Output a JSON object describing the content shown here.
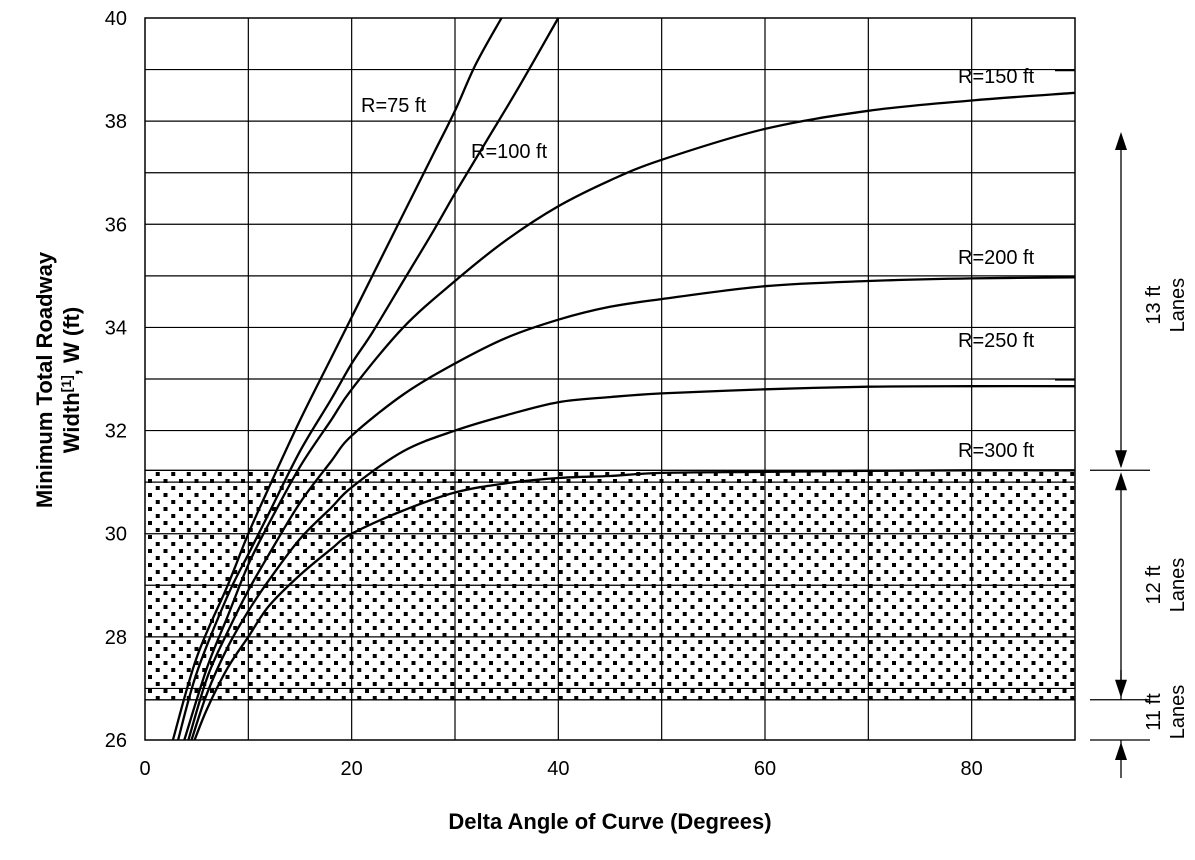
{
  "chart_data": {
    "type": "line",
    "title": "",
    "xlabel": "Delta Angle of Curve (Degrees)",
    "ylabel_line1": "Minimum Total Roadway",
    "ylabel_line2_prefix": "Width",
    "ylabel_superscript": "[1]",
    "ylabel_line2_suffix": ", W (ft)",
    "xlim": [
      0,
      90
    ],
    "ylim": [
      26,
      40
    ],
    "x_ticks": [
      0,
      20,
      40,
      60,
      80
    ],
    "y_ticks": [
      26,
      28,
      30,
      32,
      34,
      36,
      38,
      40
    ],
    "grid": true,
    "series": [
      {
        "name": "R=75 ft",
        "x": [
          2.7,
          5,
          8,
          10,
          12,
          15,
          18,
          20,
          22,
          25,
          28,
          30,
          32,
          34.5
        ],
        "y": [
          26.0,
          27.6,
          29.0,
          30.0,
          30.9,
          32.2,
          33.4,
          34.2,
          35.0,
          36.2,
          37.4,
          38.2,
          39.1,
          40.0
        ]
      },
      {
        "name": "R=100 ft",
        "x": [
          3.2,
          5,
          8,
          10,
          12,
          15,
          18,
          20,
          22,
          25,
          28,
          30,
          33,
          36,
          40
        ],
        "y": [
          26.0,
          27.3,
          28.8,
          29.6,
          30.4,
          31.6,
          32.6,
          33.3,
          33.9,
          34.9,
          35.9,
          36.6,
          37.6,
          38.6,
          40.0
        ]
      },
      {
        "name": "R=150 ft",
        "x": [
          3.8,
          6,
          8,
          10,
          12,
          15,
          18,
          20,
          25,
          30,
          35,
          40,
          45,
          50,
          60,
          70,
          80,
          90
        ],
        "y": [
          26.0,
          27.4,
          28.4,
          29.4,
          30.2,
          31.3,
          32.2,
          32.8,
          34.0,
          34.9,
          35.7,
          36.35,
          36.85,
          37.25,
          37.85,
          38.2,
          38.4,
          38.55
        ]
      },
      {
        "name": "R=200 ft",
        "x": [
          4.2,
          6,
          8,
          10,
          12,
          15,
          18,
          20,
          25,
          30,
          35,
          40,
          45,
          50,
          60,
          70,
          80,
          90
        ],
        "y": [
          26.0,
          27.2,
          28.1,
          28.9,
          29.6,
          30.6,
          31.4,
          31.9,
          32.7,
          33.3,
          33.8,
          34.15,
          34.4,
          34.55,
          34.8,
          34.9,
          34.95,
          34.97
        ]
      },
      {
        "name": "R=250 ft",
        "x": [
          4.5,
          6,
          8,
          10,
          12,
          15,
          18,
          20,
          25,
          30,
          35,
          40,
          45,
          50,
          60,
          70,
          80,
          90
        ],
        "y": [
          26.0,
          26.9,
          27.8,
          28.5,
          29.1,
          29.9,
          30.5,
          30.9,
          31.6,
          32.0,
          32.3,
          32.55,
          32.65,
          32.72,
          32.8,
          32.85,
          32.86,
          32.86
        ]
      },
      {
        "name": "R=300 ft",
        "x": [
          4.8,
          6,
          8,
          10,
          12,
          15,
          18,
          20,
          25,
          30,
          35,
          40,
          45,
          50,
          60,
          70,
          80,
          90
        ],
        "y": [
          26.0,
          26.6,
          27.4,
          28.0,
          28.6,
          29.2,
          29.7,
          30.0,
          30.45,
          30.8,
          30.98,
          31.08,
          31.12,
          31.18,
          31.2,
          31.22,
          31.23,
          31.23
        ]
      }
    ],
    "shaded_region": {
      "y_from": 26.78,
      "y_to": 31.23,
      "pattern": "dotted"
    },
    "lane_bands": [
      {
        "line1": "13 ft",
        "line2": "Lanes",
        "y_from": 31.23,
        "y_to": 40
      },
      {
        "line1": "12 ft",
        "line2": "Lanes",
        "y_from": 26.78,
        "y_to": 31.23
      },
      {
        "line1": "11 ft",
        "line2": "Lanes",
        "y_from": 26,
        "y_to": 26.78
      }
    ]
  },
  "colors": {
    "line": "#000000",
    "grid": "#000000",
    "background": "#ffffff"
  }
}
